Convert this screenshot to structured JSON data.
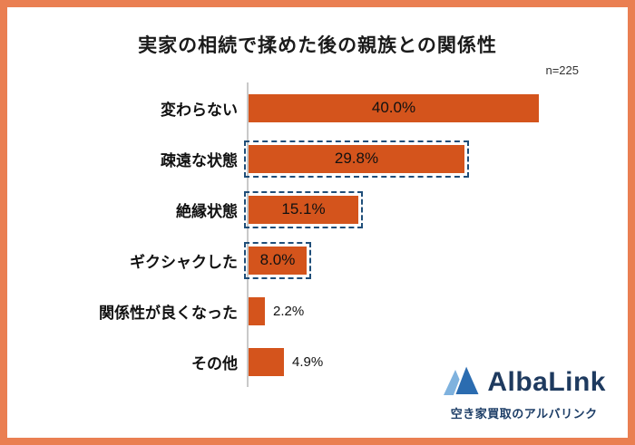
{
  "frame_color": "#EA7F52",
  "header": {
    "title": "実家の相続で揉めた後の親族との関係性",
    "sample_label": "n=225"
  },
  "chart_data": {
    "type": "bar",
    "orientation": "horizontal",
    "title": "実家の相続で揉めた後の親族との関係性",
    "sample_size": 225,
    "categories": [
      "変わらない",
      "疎遠な状態",
      "絶縁状態",
      "ギクシャクした",
      "関係性が良くなった",
      "その他"
    ],
    "values": [
      40.0,
      29.8,
      15.1,
      8.0,
      2.2,
      4.9
    ],
    "value_labels": [
      "40.0%",
      "29.8%",
      "15.1%",
      "8.0%",
      "2.2%",
      "4.9%"
    ],
    "highlighted": [
      false,
      true,
      true,
      true,
      false,
      false
    ],
    "xlim": [
      0,
      42
    ],
    "grid": false,
    "legend": false,
    "bar_color": "#D4541C",
    "highlight_border_color": "#1F4E79",
    "axis_color": "#C9C9C9",
    "inside_label_min": 7
  },
  "logo": {
    "brand": "AlbaLink",
    "tagline": "空き家買取のアルバリンク",
    "icon": "albalink-mountain-icon",
    "brand_color": "#1E3A5F",
    "icon_color_light": "#7FB2DE",
    "icon_color_dark": "#2B6CB0"
  }
}
